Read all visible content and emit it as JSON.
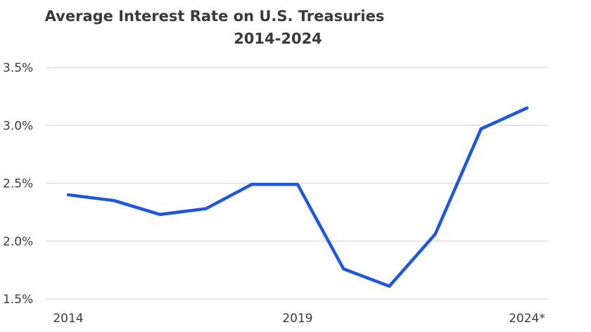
{
  "chart_data": {
    "type": "line",
    "title": "Average Interest Rate on U.S. Treasuries",
    "subtitle": "2014-2024",
    "xlabel": "",
    "ylabel": "",
    "x": [
      2014,
      2015,
      2016,
      2017,
      2018,
      2019,
      2020,
      2021,
      2022,
      2023,
      2024
    ],
    "x_tick_labels": [
      "2014",
      "2019",
      "2024*"
    ],
    "x_tick_values": [
      2014,
      2019,
      2024
    ],
    "y_tick_labels": [
      "1.5%",
      "2.0%",
      "2.5%",
      "3.0%",
      "3.5%"
    ],
    "y_tick_values": [
      1.5,
      2.0,
      2.5,
      3.0,
      3.5
    ],
    "ylim": [
      1.5,
      3.5
    ],
    "grid": "horizontal",
    "series": [
      {
        "values": [
          2.4,
          2.35,
          2.23,
          2.28,
          2.49,
          2.49,
          1.76,
          1.61,
          2.06,
          2.97,
          3.15
        ],
        "color": "#1f56e0"
      }
    ],
    "grid_color": "#dedede"
  }
}
